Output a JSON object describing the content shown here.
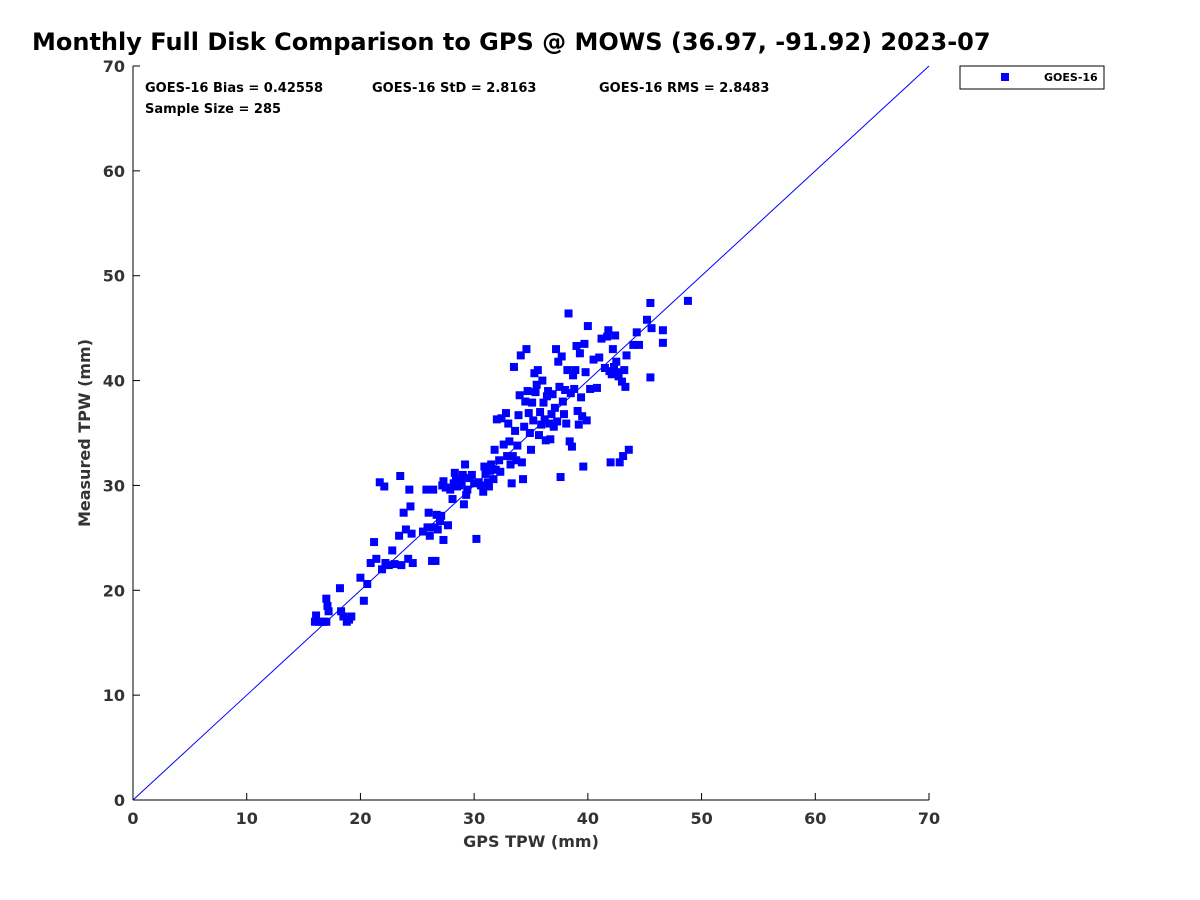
{
  "chart_data": {
    "type": "scatter",
    "title": "Monthly Full Disk Comparison to GPS @ MOWS (36.97, -91.92) 2023-07",
    "xlabel": "GPS TPW (mm)",
    "ylabel": "Measured TPW (mm)",
    "xlim": [
      0,
      70
    ],
    "ylim": [
      0,
      70
    ],
    "xticks": [
      0,
      10,
      20,
      30,
      40,
      50,
      60,
      70
    ],
    "yticks": [
      0,
      10,
      20,
      30,
      40,
      50,
      60,
      70
    ],
    "grid": false,
    "legend_position": "outside-top-right",
    "reference_line": {
      "from": [
        0,
        0
      ],
      "to": [
        70,
        70
      ],
      "color": "#0000ff"
    },
    "stats": {
      "bias": "GOES-16 Bias = 0.42558",
      "std": "GOES-16 StD = 2.8163",
      "rms": "GOES-16 RMS = 2.8483",
      "sample": "Sample Size = 285"
    },
    "series": [
      {
        "name": "GOES-16",
        "color": "#0000ff",
        "marker": "square",
        "points": [
          [
            16.0,
            17.0
          ],
          [
            16.1,
            17.6
          ],
          [
            16.3,
            17.0
          ],
          [
            16.6,
            17.0
          ],
          [
            16.8,
            17.0
          ],
          [
            17.0,
            19.2
          ],
          [
            17.1,
            18.5
          ],
          [
            17.2,
            18.0
          ],
          [
            17.0,
            17.0
          ],
          [
            18.2,
            20.2
          ],
          [
            18.3,
            18.0
          ],
          [
            18.5,
            17.5
          ],
          [
            18.8,
            17.0
          ],
          [
            19.0,
            17.2
          ],
          [
            19.2,
            17.5
          ],
          [
            20.0,
            21.2
          ],
          [
            20.3,
            19.0
          ],
          [
            20.6,
            20.6
          ],
          [
            20.9,
            22.6
          ],
          [
            21.2,
            24.6
          ],
          [
            21.4,
            23.0
          ],
          [
            21.7,
            30.3
          ],
          [
            21.9,
            22.0
          ],
          [
            22.1,
            29.9
          ],
          [
            22.2,
            22.6
          ],
          [
            22.5,
            22.4
          ],
          [
            22.8,
            23.8
          ],
          [
            23.0,
            22.5
          ],
          [
            23.4,
            25.2
          ],
          [
            23.5,
            30.9
          ],
          [
            23.6,
            22.4
          ],
          [
            23.8,
            27.4
          ],
          [
            24.0,
            25.8
          ],
          [
            24.2,
            23.0
          ],
          [
            24.3,
            29.6
          ],
          [
            24.4,
            28.0
          ],
          [
            24.5,
            25.4
          ],
          [
            24.6,
            22.6
          ],
          [
            25.5,
            25.6
          ],
          [
            25.8,
            29.6
          ],
          [
            25.9,
            26.0
          ],
          [
            26.0,
            27.4
          ],
          [
            26.1,
            25.2
          ],
          [
            26.3,
            22.8
          ],
          [
            26.4,
            29.6
          ],
          [
            26.5,
            26.0
          ],
          [
            26.6,
            22.8
          ],
          [
            26.7,
            27.2
          ],
          [
            26.8,
            25.8
          ],
          [
            27.0,
            26.6
          ],
          [
            27.1,
            27.1
          ],
          [
            27.2,
            30.0
          ],
          [
            27.3,
            30.4
          ],
          [
            27.3,
            24.8
          ],
          [
            27.5,
            29.8
          ],
          [
            27.7,
            26.2
          ],
          [
            27.9,
            29.6
          ],
          [
            28.1,
            28.7
          ],
          [
            28.2,
            30.2
          ],
          [
            28.3,
            31.2
          ],
          [
            28.4,
            30.6
          ],
          [
            28.5,
            29.9
          ],
          [
            28.7,
            30.0
          ],
          [
            28.9,
            30.3
          ],
          [
            29.0,
            31.0
          ],
          [
            29.1,
            28.2
          ],
          [
            29.2,
            32.0
          ],
          [
            29.3,
            29.1
          ],
          [
            29.4,
            29.6
          ],
          [
            29.6,
            30.7
          ],
          [
            29.8,
            31.0
          ],
          [
            30.0,
            30.2
          ],
          [
            30.2,
            24.9
          ],
          [
            30.4,
            30.3
          ],
          [
            30.6,
            30.0
          ],
          [
            30.8,
            29.4
          ],
          [
            30.9,
            31.8
          ],
          [
            31.0,
            31.1
          ],
          [
            31.2,
            30.3
          ],
          [
            31.3,
            29.9
          ],
          [
            31.4,
            31.4
          ],
          [
            31.5,
            32.0
          ],
          [
            31.7,
            30.6
          ],
          [
            31.8,
            33.4
          ],
          [
            31.9,
            31.5
          ],
          [
            32.0,
            36.3
          ],
          [
            32.2,
            32.4
          ],
          [
            32.3,
            31.3
          ],
          [
            32.4,
            36.4
          ],
          [
            32.6,
            33.9
          ],
          [
            32.8,
            36.9
          ],
          [
            32.9,
            32.8
          ],
          [
            33.0,
            35.9
          ],
          [
            33.1,
            34.2
          ],
          [
            33.2,
            32.0
          ],
          [
            33.3,
            30.2
          ],
          [
            33.4,
            32.8
          ],
          [
            33.5,
            41.3
          ],
          [
            33.6,
            35.2
          ],
          [
            33.7,
            32.4
          ],
          [
            33.8,
            33.8
          ],
          [
            33.9,
            36.7
          ],
          [
            34.0,
            38.6
          ],
          [
            34.1,
            42.4
          ],
          [
            34.2,
            32.2
          ],
          [
            34.3,
            30.6
          ],
          [
            34.4,
            35.6
          ],
          [
            34.5,
            38.0
          ],
          [
            34.6,
            43.0
          ],
          [
            34.7,
            39.0
          ],
          [
            34.8,
            36.9
          ],
          [
            34.9,
            35.0
          ],
          [
            35.0,
            33.4
          ],
          [
            35.1,
            37.9
          ],
          [
            35.2,
            36.2
          ],
          [
            35.3,
            40.7
          ],
          [
            35.4,
            38.9
          ],
          [
            35.5,
            39.6
          ],
          [
            35.6,
            41.0
          ],
          [
            35.7,
            34.8
          ],
          [
            35.8,
            37.0
          ],
          [
            35.9,
            35.8
          ],
          [
            36.0,
            40.0
          ],
          [
            36.1,
            37.9
          ],
          [
            36.2,
            36.3
          ],
          [
            36.3,
            34.3
          ],
          [
            36.4,
            38.5
          ],
          [
            36.5,
            39.0
          ],
          [
            36.6,
            35.9
          ],
          [
            36.7,
            34.4
          ],
          [
            36.8,
            36.8
          ],
          [
            36.9,
            38.7
          ],
          [
            37.0,
            35.6
          ],
          [
            37.1,
            37.4
          ],
          [
            37.2,
            43.0
          ],
          [
            37.3,
            36.1
          ],
          [
            37.4,
            41.8
          ],
          [
            37.5,
            39.4
          ],
          [
            37.6,
            30.8
          ],
          [
            37.7,
            42.3
          ],
          [
            37.8,
            38.0
          ],
          [
            37.9,
            36.8
          ],
          [
            38.0,
            39.1
          ],
          [
            38.1,
            35.9
          ],
          [
            38.2,
            41.0
          ],
          [
            38.3,
            46.4
          ],
          [
            38.4,
            34.2
          ],
          [
            38.5,
            38.8
          ],
          [
            38.6,
            33.7
          ],
          [
            38.7,
            40.5
          ],
          [
            38.8,
            39.2
          ],
          [
            38.9,
            41.0
          ],
          [
            39.0,
            43.3
          ],
          [
            39.1,
            37.1
          ],
          [
            39.2,
            35.8
          ],
          [
            39.3,
            42.6
          ],
          [
            39.4,
            38.4
          ],
          [
            39.5,
            36.6
          ],
          [
            39.6,
            31.8
          ],
          [
            39.7,
            43.5
          ],
          [
            39.8,
            40.8
          ],
          [
            39.9,
            36.2
          ],
          [
            40.0,
            45.2
          ],
          [
            40.2,
            39.2
          ],
          [
            40.5,
            42.0
          ],
          [
            40.8,
            39.3
          ],
          [
            41.0,
            42.2
          ],
          [
            41.2,
            44.0
          ],
          [
            41.5,
            41.2
          ],
          [
            41.7,
            44.2
          ],
          [
            41.8,
            44.8
          ],
          [
            41.9,
            40.9
          ],
          [
            42.0,
            32.2
          ],
          [
            42.1,
            40.6
          ],
          [
            42.2,
            43.0
          ],
          [
            42.3,
            41.3
          ],
          [
            42.4,
            44.3
          ],
          [
            42.5,
            41.8
          ],
          [
            42.6,
            40.8
          ],
          [
            42.7,
            40.4
          ],
          [
            42.8,
            32.2
          ],
          [
            43.0,
            39.9
          ],
          [
            43.1,
            32.8
          ],
          [
            43.2,
            41.0
          ],
          [
            43.3,
            39.4
          ],
          [
            43.4,
            42.4
          ],
          [
            43.6,
            33.4
          ],
          [
            44.0,
            43.4
          ],
          [
            44.3,
            44.6
          ],
          [
            44.5,
            43.4
          ],
          [
            45.2,
            45.8
          ],
          [
            45.5,
            47.4
          ],
          [
            45.6,
            45.0
          ],
          [
            45.5,
            40.3
          ],
          [
            46.6,
            44.8
          ],
          [
            46.6,
            43.6
          ],
          [
            48.8,
            47.6
          ]
        ]
      }
    ]
  }
}
